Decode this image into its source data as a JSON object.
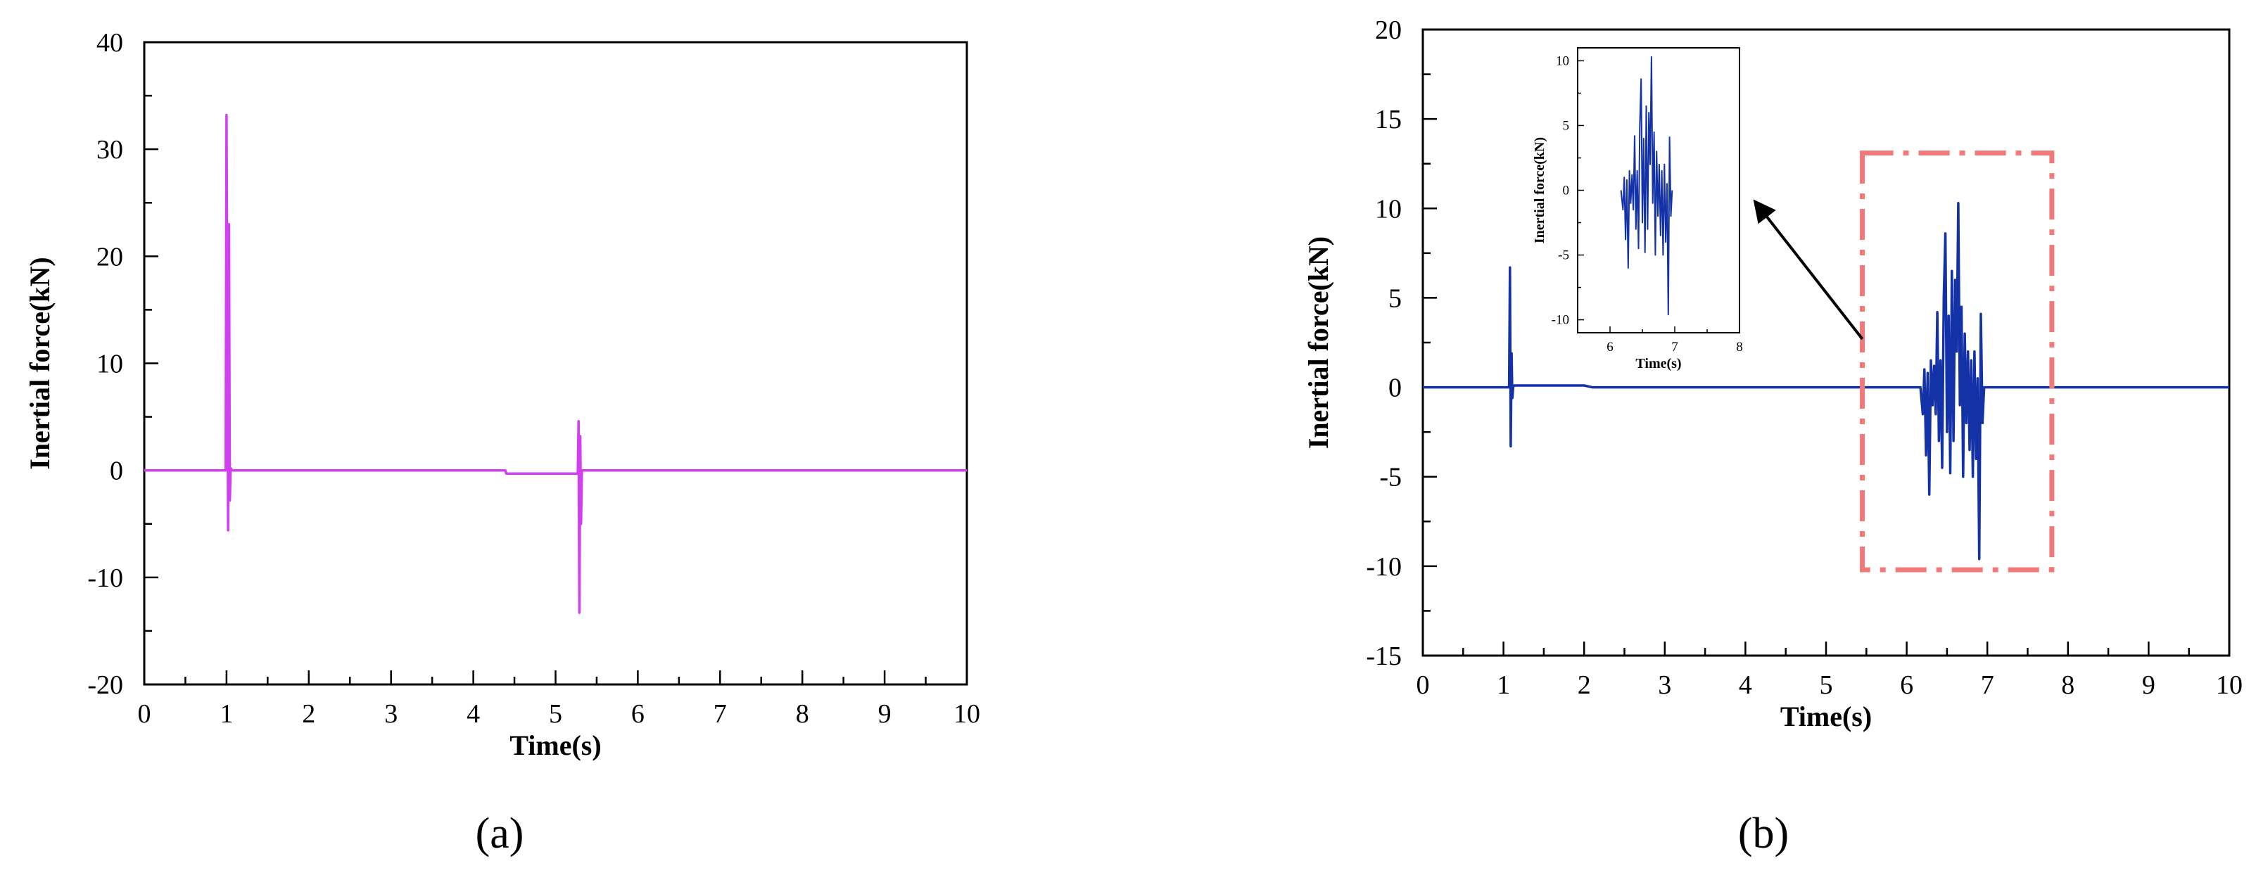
{
  "chart_data": [
    {
      "type": "line",
      "panel_label": "(a)",
      "xlabel": "Time(s)",
      "ylabel": "Inertial force(kN)",
      "xlim": [
        0,
        10
      ],
      "ylim": [
        -20,
        40
      ],
      "x_ticks": [
        0,
        1,
        2,
        3,
        4,
        5,
        6,
        7,
        8,
        9,
        10
      ],
      "y_ticks": [
        -20,
        -10,
        0,
        10,
        20,
        30,
        40
      ],
      "grid": false,
      "series": [
        {
          "color": "#d13ff0",
          "points": [
            [
              0,
              0
            ],
            [
              0.99,
              0
            ],
            [
              1.0,
              33.2
            ],
            [
              1.01,
              12
            ],
            [
              1.02,
              -5.6
            ],
            [
              1.03,
              23
            ],
            [
              1.04,
              -2.8
            ],
            [
              1.05,
              0.2
            ],
            [
              1.07,
              0
            ],
            [
              4.39,
              0
            ],
            [
              4.4,
              -0.3
            ],
            [
              5.27,
              -0.3
            ],
            [
              5.28,
              4.6
            ],
            [
              5.29,
              -13.3
            ],
            [
              5.3,
              3.2
            ],
            [
              5.31,
              -5
            ],
            [
              5.32,
              0
            ],
            [
              10,
              0
            ]
          ]
        }
      ]
    },
    {
      "type": "line",
      "panel_label": "(b)",
      "xlabel": "Time(s)",
      "ylabel": "Inertial force(kN)",
      "xlim": [
        0,
        10
      ],
      "ylim": [
        -15,
        20
      ],
      "x_ticks": [
        0,
        1,
        2,
        3,
        4,
        5,
        6,
        7,
        8,
        9,
        10
      ],
      "y_ticks": [
        -15,
        -10,
        -5,
        0,
        5,
        10,
        15,
        20
      ],
      "grid": false,
      "highlight_box": {
        "x": [
          5.45,
          7.8
        ],
        "y": [
          -10.2,
          13.1
        ],
        "color": "#f07a7a"
      },
      "series": [
        {
          "color": "#1432a8",
          "points": [
            [
              0,
              0
            ],
            [
              1.07,
              0
            ],
            [
              1.08,
              6.7
            ],
            [
              1.09,
              -3.3
            ],
            [
              1.1,
              1.9
            ],
            [
              1.11,
              -0.6
            ],
            [
              1.12,
              0
            ],
            [
              1.13,
              0.1
            ],
            [
              2.0,
              0.1
            ],
            [
              2.1,
              0
            ],
            [
              6.17,
              0
            ],
            [
              6.2,
              -1.5
            ],
            [
              6.22,
              1
            ],
            [
              6.24,
              -3.8
            ],
            [
              6.26,
              0.8
            ],
            [
              6.28,
              -6
            ],
            [
              6.3,
              1.5
            ],
            [
              6.32,
              -1
            ],
            [
              6.34,
              1.2
            ],
            [
              6.36,
              -1.5
            ],
            [
              6.38,
              4.2
            ],
            [
              6.4,
              -3
            ],
            [
              6.42,
              1.5
            ],
            [
              6.44,
              -4.5
            ],
            [
              6.46,
              5
            ],
            [
              6.48,
              8.6
            ],
            [
              6.5,
              -2.5
            ],
            [
              6.52,
              4
            ],
            [
              6.54,
              -4.8
            ],
            [
              6.56,
              6.5
            ],
            [
              6.58,
              -3
            ],
            [
              6.6,
              6
            ],
            [
              6.62,
              2
            ],
            [
              6.64,
              10.3
            ],
            [
              6.66,
              -1
            ],
            [
              6.68,
              4.5
            ],
            [
              6.7,
              -5
            ],
            [
              6.72,
              3
            ],
            [
              6.74,
              -2
            ],
            [
              6.76,
              2
            ],
            [
              6.78,
              -3.5
            ],
            [
              6.8,
              1.5
            ],
            [
              6.82,
              -5
            ],
            [
              6.84,
              2
            ],
            [
              6.86,
              -4
            ],
            [
              6.88,
              0.5
            ],
            [
              6.9,
              -9.6
            ],
            [
              6.92,
              4.1
            ],
            [
              6.94,
              -2
            ],
            [
              6.96,
              0
            ],
            [
              10,
              0
            ]
          ]
        }
      ],
      "inset": {
        "xlabel": "Time(s)",
        "ylabel": "Inertial force(kN)",
        "xlim": [
          5.5,
          8
        ],
        "ylim": [
          -11,
          11
        ],
        "x_ticks": [
          6,
          7,
          8
        ],
        "y_ticks": [
          -10,
          -5,
          0,
          5,
          10
        ],
        "arrow_from": [
          5.45,
          2.7
        ],
        "arrow_to_data_point": [
          8,
          0
        ]
      }
    }
  ]
}
